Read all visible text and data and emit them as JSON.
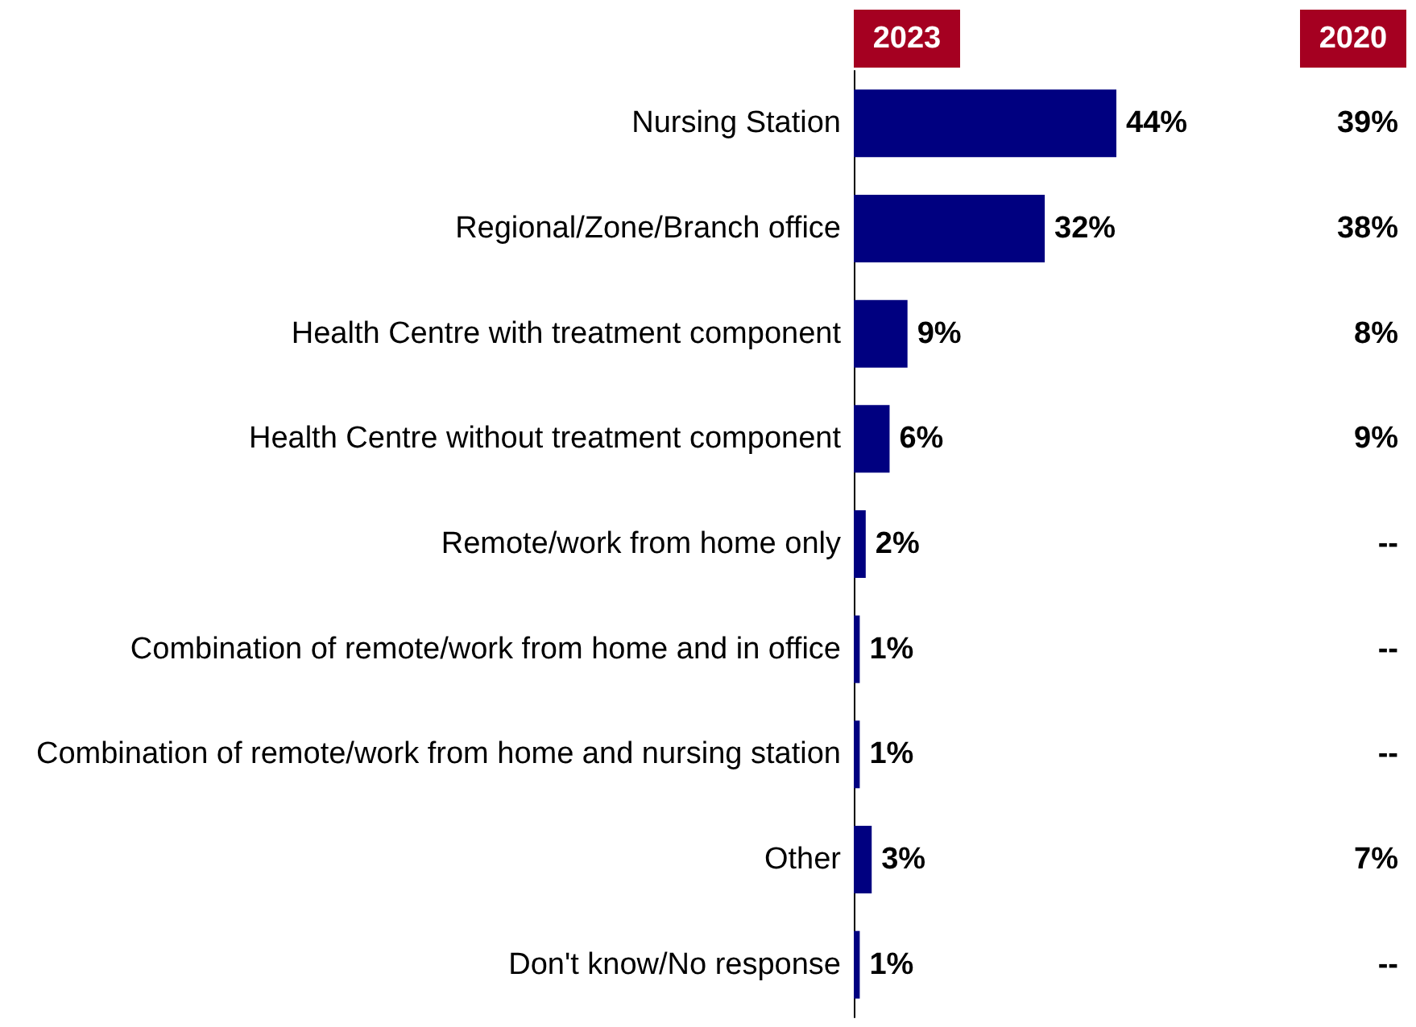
{
  "chart_data": [
    {
      "type": "bar",
      "orientation": "horizontal",
      "categories": [
        "Nursing Station",
        "Regional/Zone/Branch office",
        "Health Centre with treatment component",
        "Health Centre without treatment component",
        "Remote/work from home only",
        "Combination of remote/work from home and in office",
        "Combination of remote/work from home and nursing station",
        "Other",
        "Don't know/No response"
      ],
      "series": [
        {
          "name": "2023",
          "color": "#000080",
          "values": [
            44,
            32,
            9,
            6,
            2,
            1,
            1,
            3,
            1
          ],
          "value_labels": [
            "44%",
            "32%",
            "9%",
            "6%",
            "2%",
            "1%",
            "1%",
            "3%",
            "1%"
          ]
        }
      ],
      "grid": false,
      "legend": false
    },
    {
      "type": "other",
      "categories": [
        null,
        null,
        null,
        null,
        null,
        null,
        null,
        null,
        null
      ],
      "series": [
        {
          "name": "2020",
          "values": [
            39,
            38,
            8,
            9,
            null,
            null,
            null,
            7,
            null
          ],
          "value_labels": [
            "39%",
            "38%",
            "8%",
            "9%",
            "--",
            "--",
            "--",
            "7%",
            "--"
          ]
        }
      ],
      "legend": false
    }
  ]
}
